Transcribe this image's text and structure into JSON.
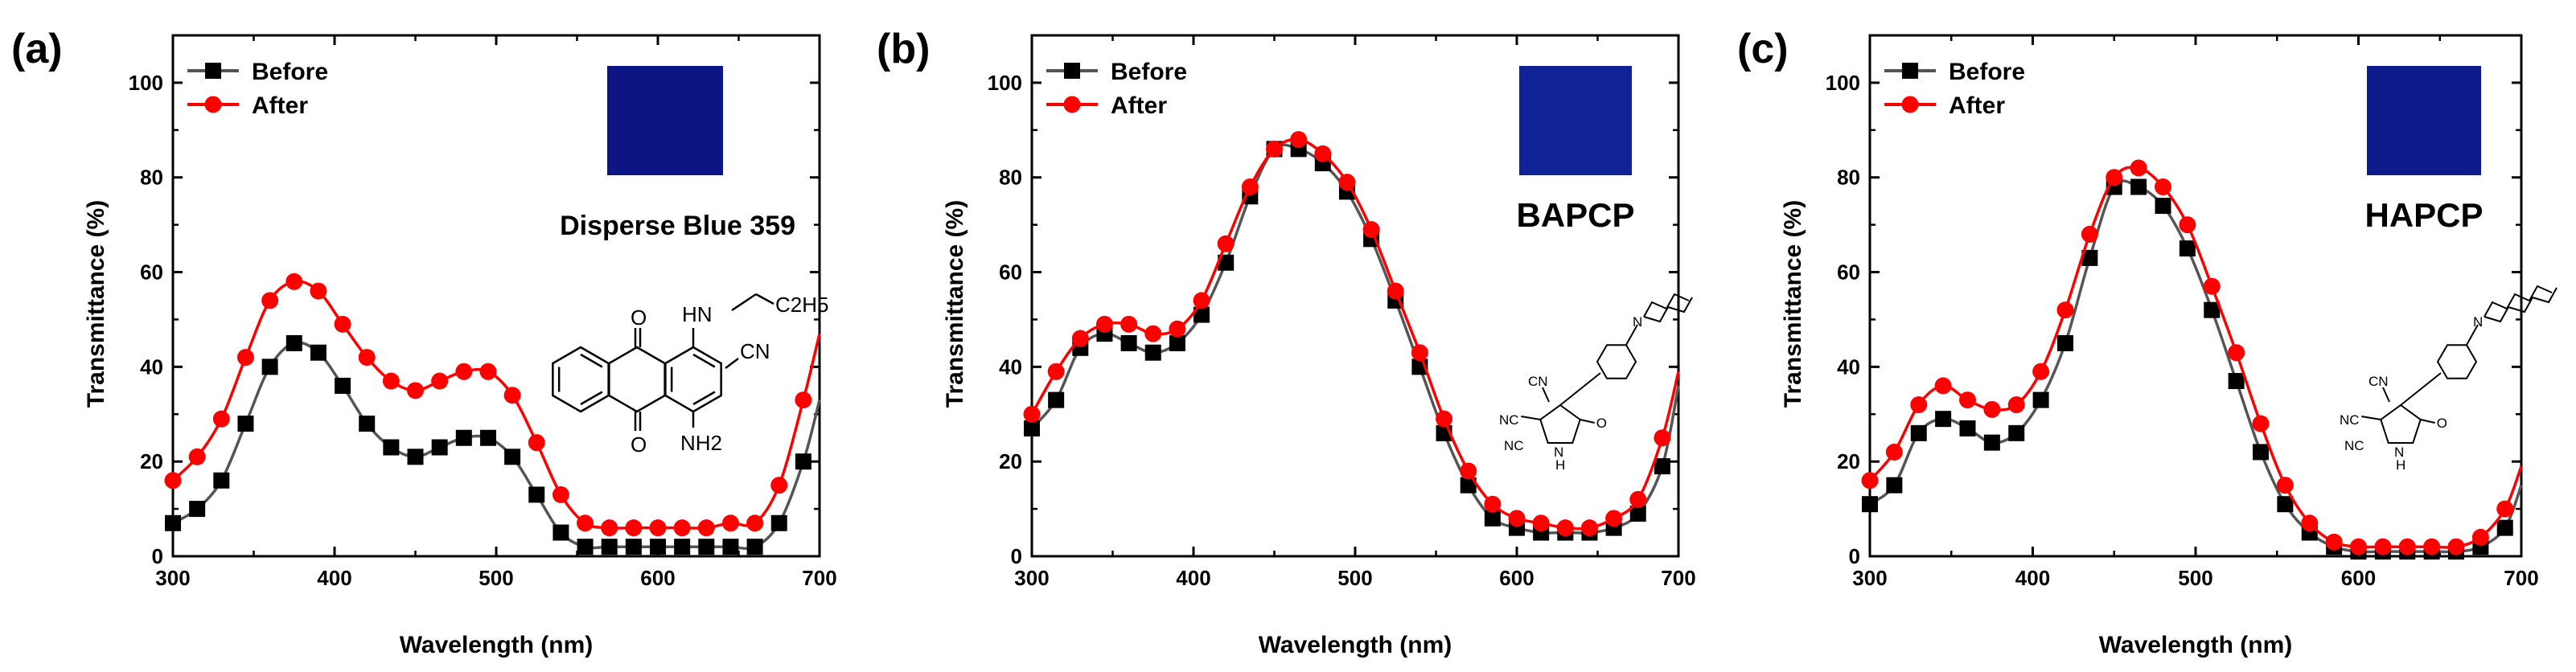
{
  "chart_data": [
    {
      "type": "line",
      "panel_label": "(a)",
      "title": "",
      "xlabel": "Wavelength (nm)",
      "ylabel": "Transmittance (%)",
      "xlim": [
        300,
        700
      ],
      "ylim": [
        0,
        110
      ],
      "xticks": [
        300,
        400,
        500,
        600,
        700
      ],
      "yticks": [
        0,
        20,
        40,
        60,
        80,
        100
      ],
      "legend": [
        "Before",
        "After"
      ],
      "legend_position": "top-left",
      "annotation": "Disperse Blue 359",
      "swatch_color": "#0d1585",
      "structure_labels": [
        "O",
        "O",
        "HN",
        "C2H5",
        "CN",
        "NH2"
      ],
      "x": [
        300,
        315,
        330,
        345,
        360,
        375,
        390,
        405,
        420,
        435,
        450,
        465,
        480,
        495,
        510,
        525,
        540,
        555,
        570,
        585,
        600,
        615,
        630,
        645,
        660,
        675,
        690,
        700
      ],
      "series": [
        {
          "name": "Before",
          "color": "#000000",
          "marker": "square",
          "values": [
            7,
            10,
            16,
            28,
            40,
            45,
            43,
            36,
            28,
            23,
            21,
            23,
            25,
            25,
            21,
            13,
            5,
            2,
            2,
            2,
            2,
            2,
            2,
            2,
            2,
            7,
            20,
            33
          ]
        },
        {
          "name": "After",
          "color": "#ff0000",
          "marker": "circle",
          "values": [
            16,
            21,
            29,
            42,
            54,
            58,
            56,
            49,
            42,
            37,
            35,
            37,
            39,
            39,
            34,
            24,
            13,
            7,
            6,
            6,
            6,
            6,
            6,
            7,
            7,
            15,
            33,
            47
          ]
        }
      ]
    },
    {
      "type": "line",
      "panel_label": "(b)",
      "title": "",
      "xlabel": "Wavelength (nm)",
      "ylabel": "Transmittance (%)",
      "xlim": [
        300,
        700
      ],
      "ylim": [
        0,
        110
      ],
      "xticks": [
        300,
        400,
        500,
        600,
        700
      ],
      "yticks": [
        0,
        20,
        40,
        60,
        80,
        100
      ],
      "legend": [
        "Before",
        "After"
      ],
      "legend_position": "top-left",
      "annotation": "BAPCP",
      "swatch_color": "#0f2296",
      "structure_labels": [
        "N",
        "CN",
        "NC",
        "NC",
        "N",
        "H",
        "O"
      ],
      "x": [
        300,
        315,
        330,
        345,
        360,
        375,
        390,
        405,
        420,
        435,
        450,
        465,
        480,
        495,
        510,
        525,
        540,
        555,
        570,
        585,
        600,
        615,
        630,
        645,
        660,
        675,
        690,
        700
      ],
      "series": [
        {
          "name": "Before",
          "color": "#000000",
          "marker": "square",
          "values": [
            27,
            33,
            44,
            47,
            45,
            43,
            45,
            51,
            62,
            76,
            86,
            86,
            83,
            77,
            67,
            54,
            40,
            26,
            15,
            8,
            6,
            5,
            5,
            5,
            6,
            9,
            19,
            36
          ]
        },
        {
          "name": "After",
          "color": "#ff0000",
          "marker": "circle",
          "values": [
            30,
            39,
            46,
            49,
            49,
            47,
            48,
            54,
            66,
            78,
            86,
            88,
            85,
            79,
            69,
            56,
            43,
            29,
            18,
            11,
            8,
            7,
            6,
            6,
            8,
            12,
            25,
            39
          ]
        }
      ]
    },
    {
      "type": "line",
      "panel_label": "(c)",
      "title": "",
      "xlabel": "Wavelength (nm)",
      "ylabel": "Transmittance (%)",
      "xlim": [
        300,
        700
      ],
      "ylim": [
        0,
        110
      ],
      "xticks": [
        300,
        400,
        500,
        600,
        700
      ],
      "yticks": [
        0,
        20,
        40,
        60,
        80,
        100
      ],
      "legend": [
        "Before",
        "After"
      ],
      "legend_position": "top-left",
      "annotation": "HAPCP",
      "swatch_color": "#0c1a8c",
      "structure_labels": [
        "N",
        "CN",
        "NC",
        "NC",
        "N",
        "H",
        "O"
      ],
      "x": [
        300,
        315,
        330,
        345,
        360,
        375,
        390,
        405,
        420,
        435,
        450,
        465,
        480,
        495,
        510,
        525,
        540,
        555,
        570,
        585,
        600,
        615,
        630,
        645,
        660,
        675,
        690,
        700
      ],
      "series": [
        {
          "name": "Before",
          "color": "#000000",
          "marker": "square",
          "values": [
            11,
            15,
            26,
            29,
            27,
            24,
            26,
            33,
            45,
            63,
            78,
            78,
            74,
            65,
            52,
            37,
            22,
            11,
            5,
            2,
            1,
            1,
            1,
            1,
            1,
            2,
            6,
            15
          ]
        },
        {
          "name": "After",
          "color": "#ff0000",
          "marker": "circle",
          "values": [
            16,
            22,
            32,
            36,
            33,
            31,
            32,
            39,
            52,
            68,
            80,
            82,
            78,
            70,
            57,
            43,
            28,
            15,
            7,
            3,
            2,
            2,
            2,
            2,
            2,
            4,
            10,
            19
          ]
        }
      ]
    }
  ]
}
